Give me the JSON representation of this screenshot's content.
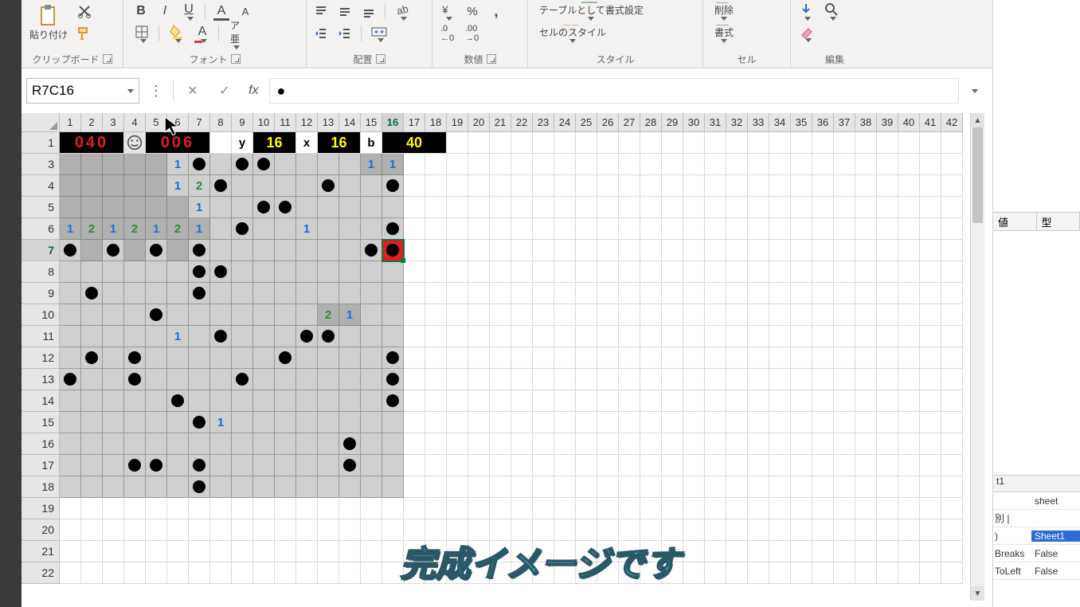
{
  "ribbon": {
    "clipboard": {
      "label": "クリップボード",
      "paste": "貼り付け"
    },
    "font": {
      "label": "フォント"
    },
    "align": {
      "label": "配置"
    },
    "number": {
      "label": "数値"
    },
    "style": {
      "label": "スタイル",
      "tableFormat": "テーブルとして書式設定",
      "cellStyle": "セルのスタイル"
    },
    "cell": {
      "label": "セル",
      "delete": "削除",
      "format": "書式"
    },
    "edit": {
      "label": "編集"
    }
  },
  "nameBox": "R7C16",
  "formula": "●",
  "columns": [
    "1",
    "2",
    "3",
    "4",
    "5",
    "6",
    "7",
    "8",
    "9",
    "10",
    "11",
    "12",
    "13",
    "14",
    "15",
    "16",
    "17",
    "18",
    "19",
    "20",
    "21",
    "22",
    "23",
    "24",
    "25",
    "26",
    "27",
    "28",
    "29",
    "30",
    "31",
    "32",
    "33",
    "34",
    "35",
    "36",
    "37",
    "38",
    "39",
    "40",
    "41",
    "42"
  ],
  "selectedCol": "16",
  "selectedRow": "7",
  "rows": [
    "1",
    "3",
    "4",
    "5",
    "6",
    "7",
    "8",
    "9",
    "10",
    "11",
    "12",
    "13",
    "14",
    "15",
    "16",
    "17",
    "18",
    "19",
    "20",
    "21",
    "22"
  ],
  "minesweeper": {
    "gridCols": 16,
    "gridRowStart": 3,
    "gridRowEnd": 18,
    "counterMines": "040",
    "counterTime": "006",
    "labels": {
      "y": "y",
      "x": "x",
      "b": "b"
    },
    "valY": "16",
    "valX": "16",
    "valB": "40",
    "cells": {
      "3": {
        "6": {
          "t": "1",
          "c": "n1"
        },
        "7": {
          "t": "dot"
        },
        "9": {
          "t": "dot"
        },
        "10": {
          "t": "dot"
        },
        "15": {
          "t": "1",
          "c": "n1",
          "bg": "dark"
        },
        "16": {
          "t": "1",
          "c": "n1",
          "bg": "dark"
        }
      },
      "4": {
        "6": {
          "t": "1",
          "c": "n1"
        },
        "7": {
          "t": "2",
          "c": "n2"
        },
        "8": {
          "t": "dot"
        },
        "13": {
          "t": "dot"
        },
        "16": {
          "t": "dot"
        }
      },
      "5": {
        "7": {
          "t": "1",
          "c": "n1"
        },
        "10": {
          "t": "dot"
        },
        "11": {
          "t": "dot"
        }
      },
      "6": {
        "1": {
          "t": "1",
          "c": "n1",
          "bg": "dark"
        },
        "2": {
          "t": "2",
          "c": "n2",
          "bg": "dark"
        },
        "3": {
          "t": "1",
          "c": "n1",
          "bg": "dark"
        },
        "4": {
          "t": "2",
          "c": "n2",
          "bg": "dark"
        },
        "5": {
          "t": "1",
          "c": "n1",
          "bg": "dark"
        },
        "6": {
          "t": "2",
          "c": "n2",
          "bg": "dark"
        },
        "7": {
          "t": "1",
          "c": "n1",
          "bg": "dark"
        },
        "9": {
          "t": "dot"
        },
        "12": {
          "t": "1",
          "c": "n1"
        },
        "16": {
          "t": "dot"
        }
      },
      "7": {
        "1": {
          "t": "dot"
        },
        "3": {
          "t": "dot"
        },
        "5": {
          "t": "dot"
        },
        "7": {
          "t": "dot"
        },
        "15": {
          "t": "dot"
        },
        "16": {
          "t": "bombred"
        }
      },
      "8": {
        "7": {
          "t": "dot"
        },
        "8": {
          "t": "dot"
        }
      },
      "9": {
        "2": {
          "t": "dot"
        },
        "7": {
          "t": "dot"
        }
      },
      "10": {
        "5": {
          "t": "dot"
        },
        "13": {
          "t": "2",
          "c": "n2",
          "bg": "dark"
        },
        "14": {
          "t": "1",
          "c": "n1",
          "bg": "dark"
        }
      },
      "11": {
        "6": {
          "t": "1",
          "c": "n1"
        },
        "8": {
          "t": "dot"
        },
        "12": {
          "t": "dot"
        },
        "13": {
          "t": "dot"
        }
      },
      "12": {
        "2": {
          "t": "dot"
        },
        "4": {
          "t": "dot"
        },
        "11": {
          "t": "dot"
        },
        "16": {
          "t": "dot"
        }
      },
      "13": {
        "1": {
          "t": "dot"
        },
        "4": {
          "t": "dot"
        },
        "9": {
          "t": "dot"
        },
        "16": {
          "t": "dot"
        }
      },
      "14": {
        "6": {
          "t": "dot"
        },
        "16": {
          "t": "dot"
        }
      },
      "15": {
        "7": {
          "t": "dot"
        },
        "8": {
          "t": "1",
          "c": "n1"
        }
      },
      "16": {
        "14": {
          "t": "dot"
        }
      },
      "17": {
        "4": {
          "t": "dot"
        },
        "5": {
          "t": "dot"
        },
        "7": {
          "t": "dot"
        },
        "14": {
          "t": "dot"
        }
      },
      "18": {
        "7": {
          "t": "dot"
        }
      }
    },
    "darkRows": {
      "3": [
        1,
        2,
        3,
        4,
        5
      ],
      "4": [
        1,
        2,
        3,
        4,
        5
      ],
      "5": [
        1,
        2,
        3,
        4,
        5,
        6
      ],
      "7": [
        2,
        4,
        6
      ]
    }
  },
  "caption": "完成イメージです",
  "sidePanel": {
    "hdr": {
      "val": "値",
      "type": "型"
    },
    "tab": "t1",
    "props": [
      {
        "k": "",
        "v": "sheet",
        "sel": false
      },
      {
        "k": "別 |",
        "v": "",
        "sel": false
      },
      {
        "k": ")",
        "v": "Sheet1",
        "sel": true
      },
      {
        "k": "Breaks",
        "v": "False",
        "sel": false
      },
      {
        "k": "ToLeft",
        "v": "False",
        "sel": false
      }
    ]
  }
}
